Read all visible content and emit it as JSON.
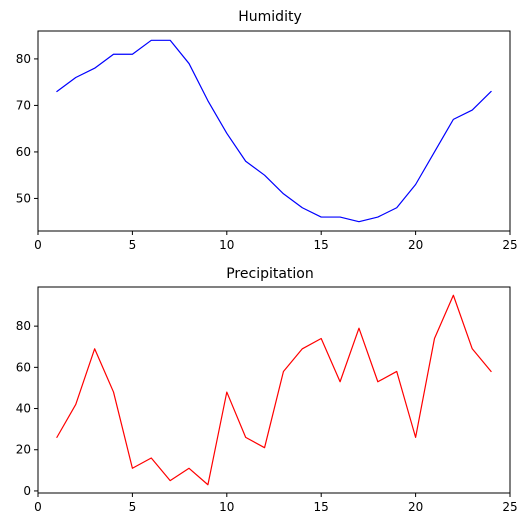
{
  "chart_data": [
    {
      "type": "line",
      "title": "Humidity",
      "xlabel": "",
      "ylabel": "",
      "xlim": [
        0,
        25
      ],
      "ylim": [
        43,
        86
      ],
      "xticks": [
        0,
        5,
        10,
        15,
        20,
        25
      ],
      "yticks": [
        50,
        60,
        70,
        80
      ],
      "grid": false,
      "series": [
        {
          "color": "#0000ff",
          "x": [
            1,
            2,
            3,
            4,
            5,
            6,
            7,
            8,
            9,
            10,
            11,
            12,
            13,
            14,
            15,
            16,
            17,
            18,
            19,
            20,
            21,
            22,
            23,
            24
          ],
          "y": [
            73,
            76,
            78,
            81,
            81,
            84,
            84,
            79,
            71,
            64,
            58,
            55,
            51,
            48,
            46,
            46,
            45,
            46,
            48,
            53,
            60,
            67,
            69,
            73
          ]
        }
      ]
    },
    {
      "type": "line",
      "title": "Precipitation",
      "xlabel": "",
      "ylabel": "",
      "xlim": [
        0,
        25
      ],
      "ylim": [
        -1,
        99
      ],
      "xticks": [
        0,
        5,
        10,
        15,
        20,
        25
      ],
      "yticks": [
        0,
        20,
        40,
        60,
        80
      ],
      "grid": false,
      "series": [
        {
          "color": "#ff0000",
          "x": [
            1,
            2,
            3,
            4,
            5,
            6,
            7,
            8,
            9,
            10,
            11,
            12,
            13,
            14,
            15,
            16,
            17,
            18,
            19,
            20,
            21,
            22,
            23,
            24
          ],
          "y": [
            26,
            42,
            69,
            48,
            11,
            16,
            5,
            11,
            3,
            48,
            26,
            21,
            58,
            69,
            74,
            53,
            79,
            53,
            58,
            26,
            74,
            95,
            69,
            58
          ]
        }
      ]
    }
  ]
}
